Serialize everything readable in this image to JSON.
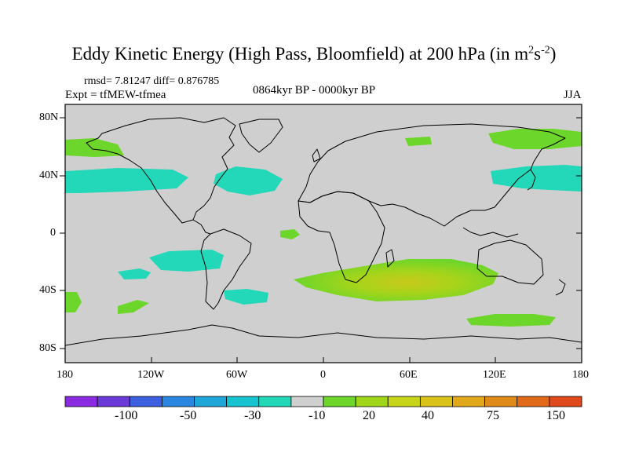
{
  "title": {
    "main": "Eddy Kinetic Energy (High Pass, Bloomfield) at 200 hPa (in m",
    "sup1": "2",
    "s": "s",
    "sup2": "-2",
    "close": ")"
  },
  "stats": "rmsd= 7.81247 diff= 0.876785",
  "experiment": "Expt = tfMEW-tfmea",
  "period": "0864kyr BP - 0000kyr BP",
  "season": "JJA",
  "lat_labels": [
    "80N",
    "40N",
    "0",
    "40S",
    "80S"
  ],
  "lon_labels": [
    "180",
    "120W",
    "60W",
    "0",
    "60E",
    "120E",
    "180"
  ],
  "colorbar": {
    "colors": [
      "#8a2be2",
      "#6a3ad8",
      "#3c5fe0",
      "#2b86e0",
      "#1fa6d8",
      "#18c3d0",
      "#22d8b8",
      "#cfcfcf",
      "#6cd62a",
      "#9fd61a",
      "#c8d41a",
      "#d9c21a",
      "#e0a81a",
      "#e08a1a",
      "#e06a1a",
      "#e04a1a"
    ],
    "labels": [
      "-100",
      "-50",
      "-30",
      "-10",
      "20",
      "40",
      "75",
      "150"
    ]
  },
  "colors": {
    "background": "#cfcfcf",
    "neg_anomaly": "#22d8b8",
    "pos_low": "#6cd62a",
    "pos_mid": "#a8d41a",
    "pos_high": "#c8c81a"
  }
}
